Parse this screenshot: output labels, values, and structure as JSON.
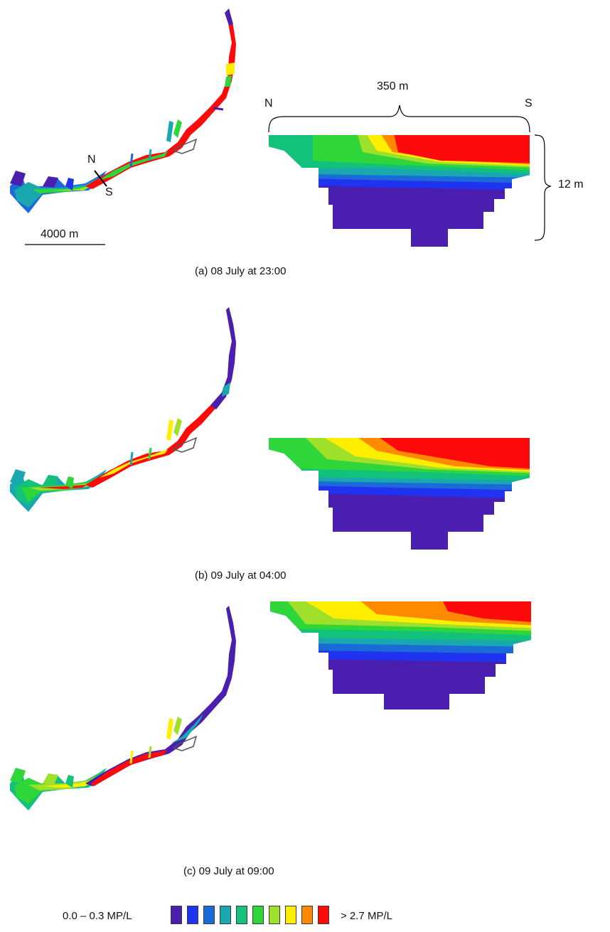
{
  "colors": {
    "c1": "#4a1fb0",
    "c2": "#1f33f0",
    "c3": "#1a6bd8",
    "c4": "#19a7b0",
    "c5": "#12c27a",
    "c6": "#2ed63a",
    "c7": "#9fe02a",
    "c8": "#ffee00",
    "c9": "#ff8a00",
    "c10": "#ff0a0a"
  },
  "annotations": {
    "scale_bar": "4000 m",
    "transect_north": "N",
    "transect_south": "S",
    "section_width": "350 m",
    "section_depth": "12 m",
    "north": "N",
    "south": "S"
  },
  "panels": [
    {
      "caption": "(a) 08 July at 23:00"
    },
    {
      "caption": "(b) 09 July at 04:00"
    },
    {
      "caption": "(c) 09 July at 09:00"
    }
  ],
  "legend": {
    "min_label": "0.0 – 0.3 MP/L",
    "max_label": "> 2.7 MP/L",
    "swatches": [
      "#4a1fb0",
      "#1f33f0",
      "#1a6bd8",
      "#19a7b0",
      "#12c27a",
      "#2ed63a",
      "#9fe02a",
      "#ffee00",
      "#ff8a00",
      "#ff0a0a"
    ]
  }
}
